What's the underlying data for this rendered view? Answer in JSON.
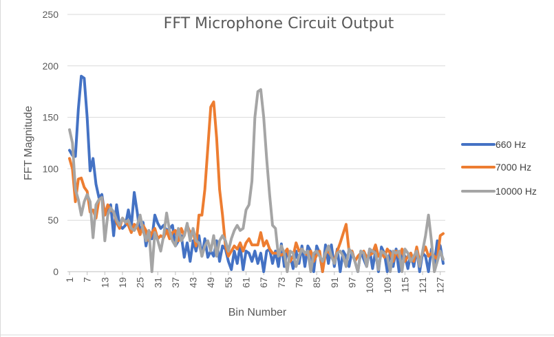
{
  "chart_data": {
    "type": "line",
    "title": "FFT Microphone Circuit Output",
    "xlabel": "Bin Number",
    "ylabel": "FFT Magnitude",
    "ylim": [
      0,
      250
    ],
    "yticks": [
      0,
      50,
      100,
      150,
      200,
      250
    ],
    "x_tick_labels": [
      "1",
      "7",
      "13",
      "19",
      "25",
      "31",
      "37",
      "43",
      "49",
      "55",
      "61",
      "67",
      "73",
      "79",
      "85",
      "91",
      "97",
      "103",
      "109",
      "115",
      "121",
      "127"
    ],
    "grid": true,
    "legend_position": "right",
    "x": [
      1,
      2,
      3,
      4,
      5,
      6,
      7,
      8,
      9,
      10,
      11,
      12,
      13,
      14,
      15,
      16,
      17,
      18,
      19,
      20,
      21,
      22,
      23,
      24,
      25,
      26,
      27,
      28,
      29,
      30,
      31,
      32,
      33,
      34,
      35,
      36,
      37,
      38,
      39,
      40,
      41,
      42,
      43,
      44,
      45,
      46,
      47,
      48,
      49,
      50,
      51,
      52,
      53,
      54,
      55,
      56,
      57,
      58,
      59,
      60,
      61,
      62,
      63,
      64,
      65,
      66,
      67,
      68,
      69,
      70,
      71,
      72,
      73,
      74,
      75,
      76,
      77,
      78,
      79,
      80,
      81,
      82,
      83,
      84,
      85,
      86,
      87,
      88,
      89,
      90,
      91,
      92,
      93,
      94,
      95,
      96,
      97,
      98,
      99,
      100,
      101,
      102,
      103,
      104,
      105,
      106,
      107,
      108,
      109,
      110,
      111,
      112,
      113,
      114,
      115,
      116,
      117,
      118,
      119,
      120,
      121,
      122,
      123,
      124,
      125,
      126,
      127,
      128
    ],
    "series": [
      {
        "name": "660 Hz",
        "color": "#4472C4",
        "values": [
          118,
          113,
          112,
          158,
          190,
          188,
          150,
          98,
          110,
          85,
          72,
          75,
          55,
          62,
          65,
          35,
          65,
          45,
          42,
          45,
          60,
          44,
          77,
          58,
          37,
          48,
          25,
          40,
          32,
          55,
          47,
          42,
          45,
          40,
          42,
          45,
          25,
          30,
          35,
          14,
          28,
          10,
          30,
          20,
          35,
          15,
          32,
          14,
          20,
          15,
          30,
          10,
          25,
          22,
          10,
          2,
          20,
          8,
          25,
          2,
          20,
          18,
          10,
          20,
          8,
          18,
          0,
          20,
          22,
          8,
          20,
          5,
          27,
          5,
          20,
          15,
          3,
          20,
          8,
          25,
          5,
          25,
          20,
          0,
          25,
          18,
          0,
          26,
          8,
          26,
          5,
          22,
          0,
          20,
          15,
          5,
          20,
          10,
          0,
          20,
          12,
          5,
          22,
          3,
          20,
          0,
          24,
          18,
          0,
          20,
          5,
          22,
          0,
          20,
          15,
          3,
          18,
          5,
          22,
          0,
          18,
          15,
          0,
          22,
          8,
          30,
          25,
          8
        ]
      },
      {
        "name": "7000 Hz",
        "color": "#ED7D31",
        "values": [
          110,
          100,
          68,
          90,
          91,
          82,
          78,
          58,
          60,
          52,
          70,
          72,
          55,
          65,
          60,
          58,
          48,
          42,
          52,
          48,
          45,
          38,
          46,
          44,
          36,
          45,
          40,
          30,
          38,
          42,
          32,
          35,
          33,
          40,
          32,
          38,
          40,
          30,
          42,
          35,
          45,
          38,
          40,
          25,
          55,
          55,
          80,
          120,
          160,
          165,
          130,
          80,
          55,
          25,
          15,
          20,
          25,
          22,
          28,
          20,
          28,
          32,
          26,
          26,
          26,
          38,
          25,
          30,
          22,
          18,
          18,
          18,
          16,
          18,
          22,
          10,
          15,
          28,
          20,
          22,
          18,
          16,
          20,
          10,
          16,
          20,
          0,
          18,
          20,
          15,
          10,
          20,
          28,
          37,
          46,
          20,
          20,
          10,
          15,
          18,
          20,
          14,
          16,
          18,
          26,
          15,
          18,
          14,
          22,
          18,
          10,
          20,
          14,
          22,
          10,
          15,
          18,
          10,
          24,
          10,
          18,
          24,
          15,
          18,
          15,
          12,
          35,
          37
        ]
      },
      {
        "name": "10000 Hz",
        "color": "#A5A5A5",
        "values": [
          138,
          125,
          80,
          70,
          55,
          68,
          75,
          68,
          33,
          65,
          70,
          72,
          30,
          55,
          62,
          58,
          50,
          45,
          52,
          48,
          50,
          42,
          40,
          45,
          55,
          40,
          30,
          40,
          0,
          38,
          30,
          20,
          35,
          57,
          40,
          30,
          25,
          42,
          30,
          35,
          47,
          30,
          42,
          30,
          28,
          15,
          25,
          30,
          20,
          35,
          15,
          30,
          35,
          30,
          20,
          32,
          40,
          45,
          40,
          42,
          60,
          65,
          88,
          150,
          175,
          177,
          150,
          110,
          75,
          45,
          42,
          15,
          25,
          18,
          0,
          20,
          18,
          5,
          15,
          22,
          18,
          20,
          0,
          18,
          20,
          15,
          10,
          18,
          25,
          15,
          8,
          18,
          20,
          15,
          5,
          22,
          18,
          10,
          0,
          20,
          18,
          5,
          22,
          20,
          18,
          2,
          20,
          18,
          15,
          0,
          20,
          18,
          20,
          0,
          22,
          18,
          10,
          15,
          20,
          5,
          20,
          35,
          55,
          30,
          0,
          10,
          20,
          12
        ]
      }
    ]
  }
}
